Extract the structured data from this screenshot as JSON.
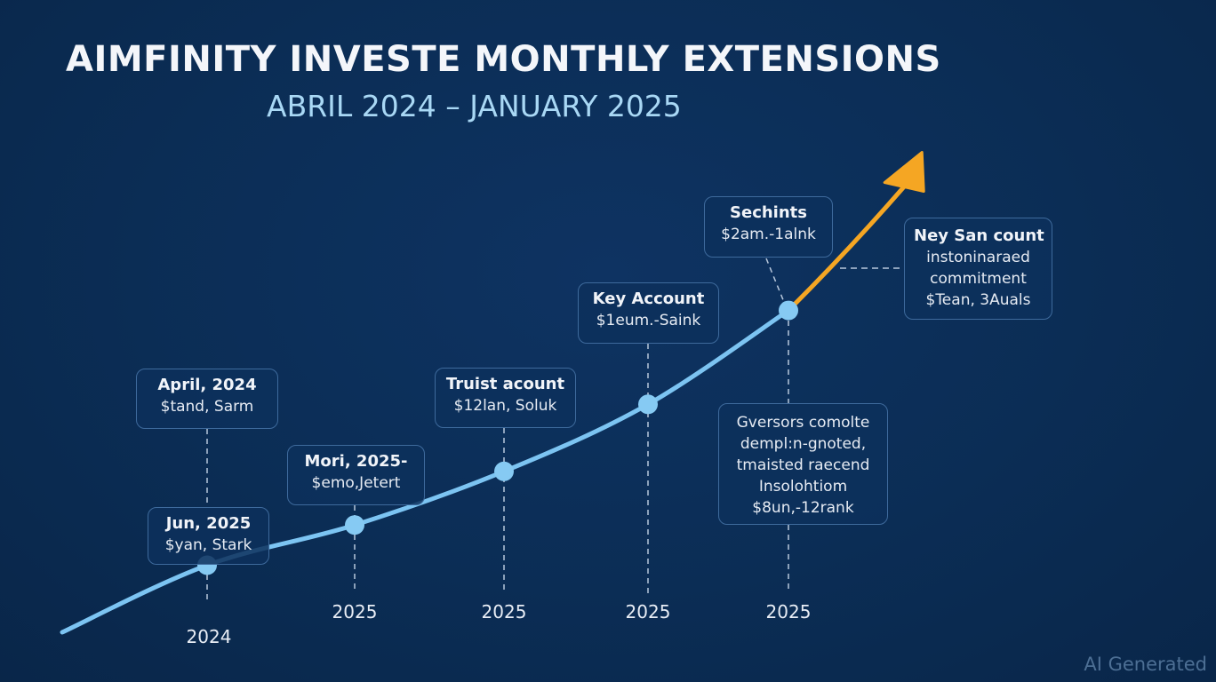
{
  "chart_data": {
    "type": "line",
    "title": "AIMFINITY INVESTE MONTHLY EXTENSIONS",
    "subtitle": "ABRIL 2024 – JANUARY 2025",
    "xlabel": "",
    "ylabel": "",
    "grid": false,
    "legend": "none",
    "x_ticks": [
      "2024",
      "2025",
      "2025",
      "2025",
      "2025"
    ],
    "series": [
      {
        "name": "growth",
        "color": "#7cc4f2",
        "points": [
          {
            "x": 0,
            "y": 0
          },
          {
            "x": 1,
            "y": 1.0
          },
          {
            "x": 2,
            "y": 1.6
          },
          {
            "x": 3,
            "y": 2.4
          },
          {
            "x": 4,
            "y": 3.4
          },
          {
            "x": 5,
            "y": 4.8
          }
        ]
      },
      {
        "name": "projection",
        "color": "#f5a623",
        "points": [
          {
            "x": 5,
            "y": 4.8
          },
          {
            "x": 5.9,
            "y": 7.0
          }
        ]
      }
    ],
    "markers": [
      {
        "x": 1,
        "y": 1.0,
        "tick": "2024"
      },
      {
        "x": 2,
        "y": 1.6,
        "tick": "2025"
      },
      {
        "x": 3,
        "y": 2.4,
        "tick": "2025"
      },
      {
        "x": 4,
        "y": 3.4,
        "tick": "2025"
      },
      {
        "x": 5,
        "y": 4.8,
        "tick": "2025"
      }
    ],
    "annotations": [
      {
        "id": "april-2024",
        "lines": [
          "April, 2024",
          "$tand, Sarm"
        ]
      },
      {
        "id": "jun-2025",
        "lines": [
          "Jun, 2025",
          "$yan, Stark"
        ]
      },
      {
        "id": "mori-2025",
        "lines": [
          "Mori, 2025-",
          "$emo,Jetert"
        ]
      },
      {
        "id": "trust-account",
        "lines": [
          "Truist acount",
          "$12lan, Soluk"
        ]
      },
      {
        "id": "key-account",
        "lines": [
          "Key Account",
          "$1eum.-Saink"
        ]
      },
      {
        "id": "sechints",
        "lines": [
          "Sechints",
          "$2am.-1alnk"
        ]
      },
      {
        "id": "ney-san-count",
        "lines": [
          "Ney San count",
          "instoninaraed",
          "commitment",
          "$Tean, 3Auals"
        ]
      },
      {
        "id": "eversors",
        "lines": [
          "Gversors comolte",
          "dempl:n-gnoted,",
          "tmaisted raecend",
          "Insolohtiom",
          "$8un,-12rank"
        ]
      }
    ]
  },
  "watermark": "AI Generated",
  "colors": {
    "background": "#0b2d55",
    "line": "#7cc4f2",
    "projection": "#f5a623",
    "callout_border": "#3e6a9c",
    "subtitle": "#a9d8f5"
  }
}
